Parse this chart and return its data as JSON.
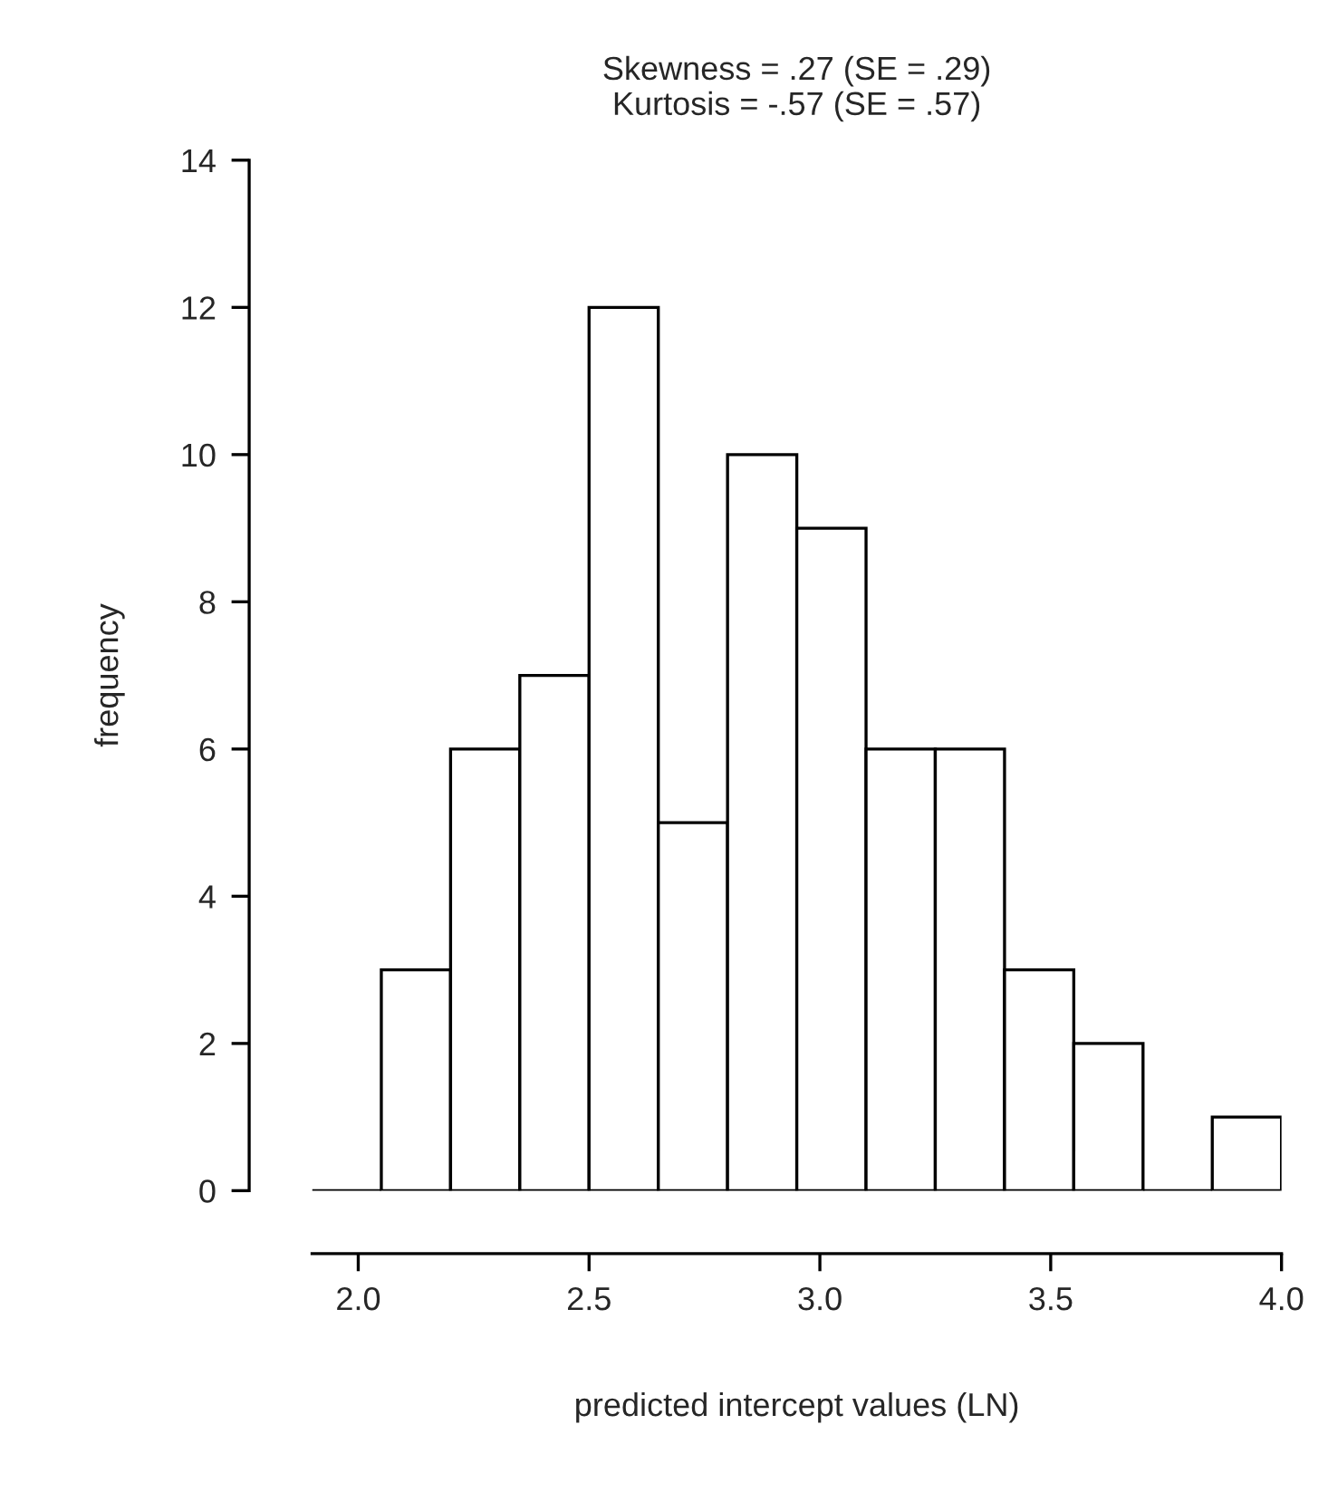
{
  "chart_data": {
    "type": "histogram",
    "title": "Skewness = .27 (SE = .29)\nKurtosis = -.57 (SE = .57)",
    "xlabel": "predicted intercept values (LN)",
    "ylabel": "frequency",
    "bins": [
      1.9,
      2.05,
      2.2,
      2.35,
      2.5,
      2.65,
      2.8,
      2.95,
      3.1,
      3.25,
      3.4,
      3.55,
      3.7,
      3.85,
      4.0
    ],
    "values": [
      0,
      3,
      6,
      7,
      12,
      5,
      10,
      9,
      6,
      6,
      3,
      2,
      0,
      1
    ],
    "xlim": [
      1.9,
      4.0
    ],
    "xticks": [
      {
        "value": 2.0,
        "label": "2.0"
      },
      2.5,
      {
        "value": 3.0,
        "label": "3.0"
      },
      3.5,
      {
        "value": 4.0,
        "label": "4.0"
      }
    ],
    "ylim": [
      0,
      14
    ],
    "yticks": [
      0,
      2,
      4,
      6,
      8,
      10,
      12,
      14
    ],
    "grid": false
  }
}
